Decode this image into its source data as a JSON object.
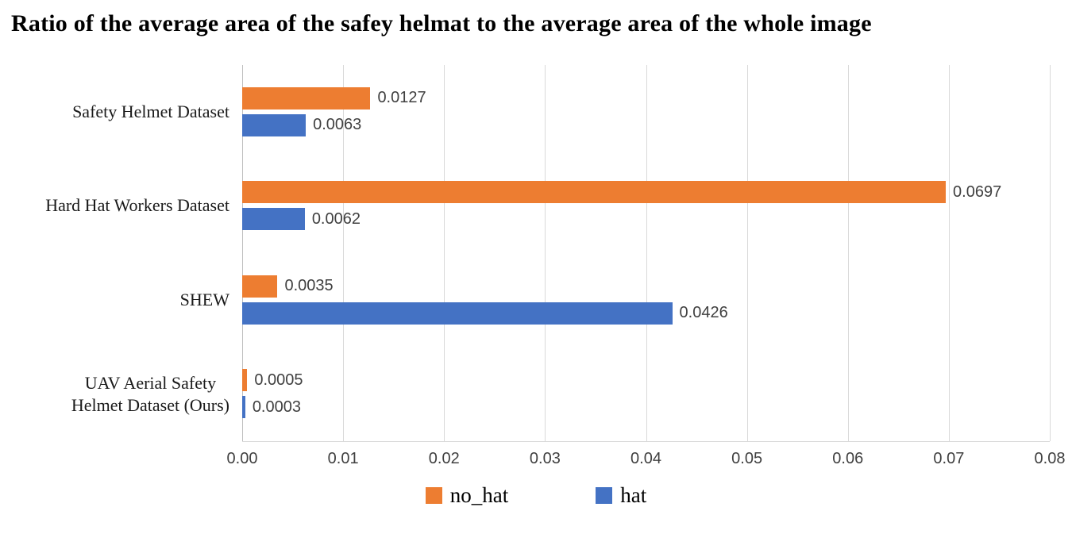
{
  "chart_data": {
    "type": "bar",
    "orientation": "horizontal",
    "title": "Ratio of the average area of the safey helmat to the average area of the whole image",
    "categories": [
      "Safety Helmet Dataset",
      "Hard Hat Workers Dataset",
      "SHEW",
      "UAV Aerial Safety\nHelmet Dataset (Ours)"
    ],
    "series": [
      {
        "name": "no_hat",
        "color": "#ED7D31",
        "values": [
          0.0127,
          0.0697,
          0.0035,
          0.0005
        ],
        "labels": [
          "0.0127",
          "0.0697",
          "0.0035",
          "0.0005"
        ]
      },
      {
        "name": "hat",
        "color": "#4472C4",
        "values": [
          0.0063,
          0.0062,
          0.0426,
          0.0003
        ],
        "labels": [
          "0.0063",
          "0.0062",
          "0.0426",
          "0.0003"
        ]
      }
    ],
    "x_axis": {
      "min": 0,
      "max": 0.08,
      "tick_interval": 0.01,
      "tick_labels": [
        "0.00",
        "0.01",
        "0.02",
        "0.03",
        "0.04",
        "0.05",
        "0.06",
        "0.07",
        "0.08"
      ]
    },
    "grid": true,
    "gridline_color": "#D9D9D9",
    "axis_line_color": "#BFBFBF",
    "label_text_color": "#404040",
    "legend_position": "bottom"
  }
}
